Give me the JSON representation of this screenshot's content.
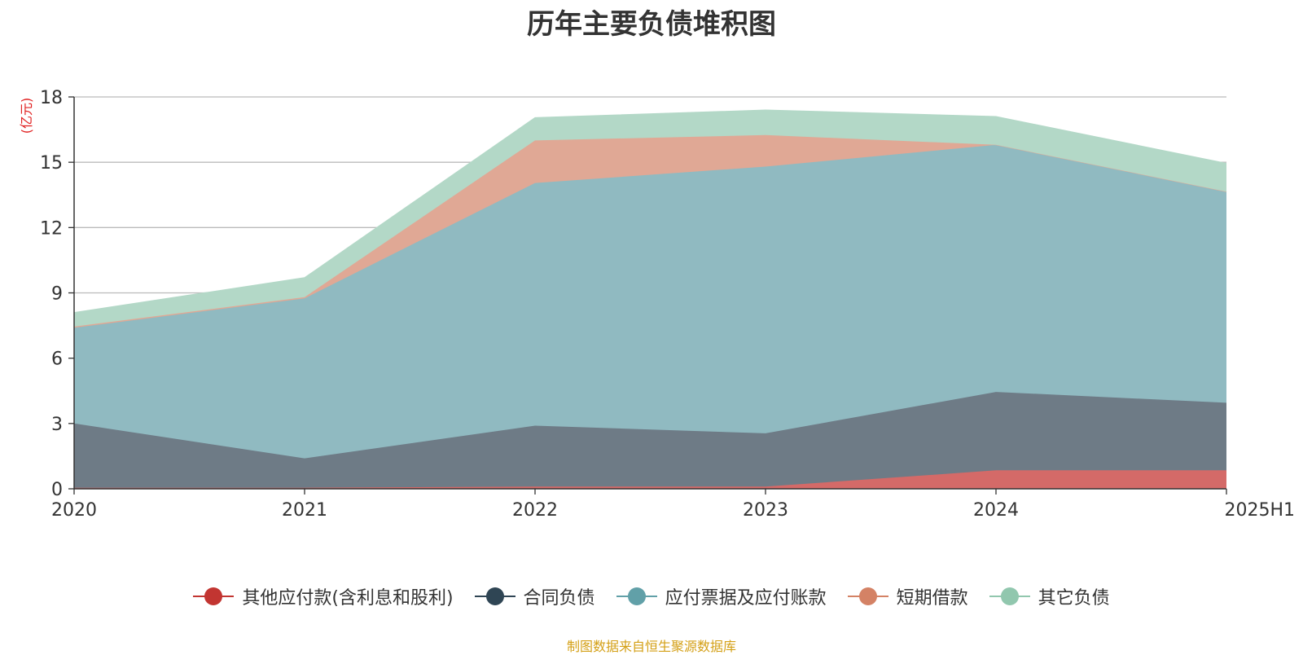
{
  "title": "历年主要负债堆积图",
  "source_note": "制图数据来自恒生聚源数据库",
  "colors": {
    "axis": "#333333",
    "grid": "#bbbbbb",
    "unit": "#e02020"
  },
  "chart_data": {
    "type": "area",
    "stacked": true,
    "title": "历年主要负债堆积图",
    "ylabel": "(亿元)",
    "categories": [
      "2020",
      "2021",
      "2022",
      "2023",
      "2024",
      "2025H1"
    ],
    "ylim": [
      0,
      18
    ],
    "yticks": [
      0,
      3,
      6,
      9,
      12,
      15,
      18
    ],
    "grid": true,
    "legend_position": "bottom",
    "series": [
      {
        "name": "其他应付款(含利息和股利)",
        "color": "#c23531",
        "fill": "#d46a68",
        "values": [
          0.05,
          0.05,
          0.1,
          0.1,
          0.85,
          0.85
        ]
      },
      {
        "name": "合同负债",
        "color": "#2f4554",
        "fill": "#6e7b86",
        "values": [
          2.95,
          1.35,
          2.8,
          2.45,
          3.6,
          3.1
        ]
      },
      {
        "name": "应付票据及应付账款",
        "color": "#61a0a8",
        "fill": "#90bac1",
        "values": [
          4.4,
          7.35,
          11.15,
          12.25,
          11.35,
          9.7
        ]
      },
      {
        "name": "短期借款",
        "color": "#d48265",
        "fill": "#e0a895",
        "values": [
          0.05,
          0.05,
          1.95,
          1.45,
          0,
          0
        ]
      },
      {
        "name": "其它负债",
        "color": "#91c7ae",
        "fill": "#b3d8c7",
        "values": [
          0.65,
          0.9,
          1.05,
          1.15,
          1.3,
          1.3
        ]
      }
    ]
  }
}
